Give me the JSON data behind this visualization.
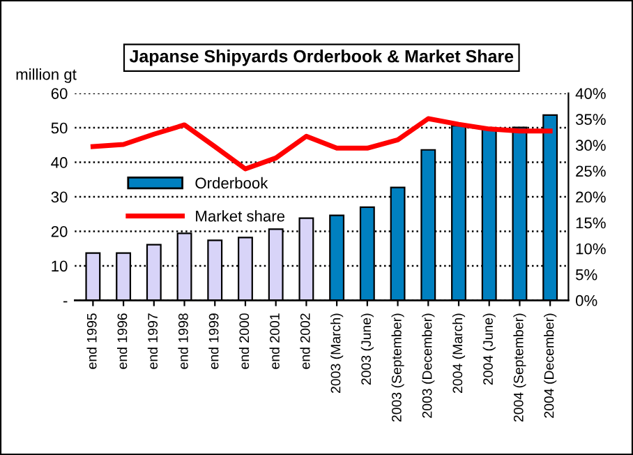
{
  "chart_data": {
    "type": "bar",
    "title": "Japanse Shipyards Orderbook & Market Share",
    "ylabel": "million gt",
    "categories": [
      "end 1995",
      "end 1996",
      "end 1997",
      "end 1998",
      "end 1999",
      "end 2000",
      "end 2001",
      "end 2002",
      "2003 (March)",
      "2003 (June)",
      "2003 (September)",
      "2003 (December)",
      "2004 (March)",
      "2004 (June)",
      "2004 (September)",
      "2004 (December)"
    ],
    "series": [
      {
        "name": "Orderbook",
        "color": "#0080c0",
        "colors": [
          "#d8d4f8",
          "#d8d4f8",
          "#d8d4f8",
          "#d8d4f8",
          "#d8d4f8",
          "#d8d4f8",
          "#d8d4f8",
          "#d8d4f8",
          "#0080c0",
          "#0080c0",
          "#0080c0",
          "#0080c0",
          "#0080c0",
          "#0080c0",
          "#0080c0",
          "#0080c0"
        ],
        "values": [
          13.7,
          13.7,
          16.1,
          19.4,
          17.4,
          18.2,
          20.6,
          23.8,
          24.6,
          27.0,
          32.7,
          43.6,
          50.6,
          49.9,
          50.1,
          53.7
        ]
      },
      {
        "name": "Market share",
        "type": "line",
        "axis": "y2",
        "color": "#ff0000",
        "values": [
          29.7,
          30.1,
          32.1,
          33.9,
          29.7,
          25.4,
          27.5,
          31.7,
          29.4,
          29.4,
          31.0,
          35.1,
          34.0,
          33.1,
          32.7,
          32.7
        ]
      }
    ],
    "ylim": [
      0,
      60
    ],
    "yticks": [
      {
        "value": 0,
        "label": "-"
      },
      10,
      20,
      30,
      40,
      50,
      60
    ],
    "y2lim": [
      0,
      40
    ],
    "y2ticks": [
      {
        "value": 0,
        "label": "0%"
      },
      {
        "value": 5,
        "label": "5%"
      },
      {
        "value": 10,
        "label": "10%"
      },
      {
        "value": 15,
        "label": "15%"
      },
      {
        "value": 20,
        "label": "20%"
      },
      {
        "value": 25,
        "label": "25%"
      },
      {
        "value": 30,
        "label": "30%"
      },
      {
        "value": 35,
        "label": "35%"
      },
      {
        "value": 40,
        "label": "40%"
      }
    ],
    "grid": "y",
    "legend": "left",
    "marker": "none",
    "line_style": "solid"
  }
}
